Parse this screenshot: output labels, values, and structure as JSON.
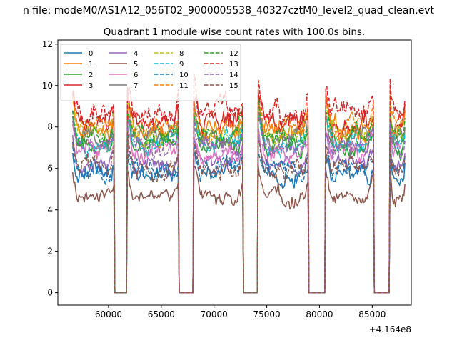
{
  "figure": {
    "suptitle": "n file: modeM0/AS1A12_056T02_9000005538_40327cztM0_level2_quad_clean.evt",
    "axis_offset": "+4.164e8"
  },
  "chart_data": {
    "type": "line",
    "title": "Quadrant 1 module wise count rates with 100.0s bins.",
    "xlabel": "",
    "ylabel": "",
    "x_offset": 416400000,
    "xlim": [
      55200,
      88700
    ],
    "ylim": [
      -0.6,
      12.2
    ],
    "x_ticks": [
      60000,
      65000,
      70000,
      75000,
      80000,
      85000
    ],
    "x_tick_labels": [
      "60000",
      "65000",
      "70000",
      "75000",
      "80000",
      "85000"
    ],
    "y_ticks": [
      0,
      2,
      4,
      6,
      8,
      10,
      12
    ],
    "y_tick_labels": [
      "0",
      "2",
      "4",
      "6",
      "8",
      "10",
      "12"
    ],
    "grid": false,
    "legend": {
      "placement": "top-left",
      "columns": 4
    },
    "bin_seconds": 100,
    "active_segments": [
      [
        56600,
        60500
      ],
      [
        61800,
        66600
      ],
      [
        68100,
        72700
      ],
      [
        74200,
        78900
      ],
      [
        80600,
        85100
      ],
      [
        86700,
        88100
      ]
    ],
    "gap_value": 0,
    "series": [
      {
        "name": "0",
        "color": "#1f77b4",
        "dash": "solid",
        "level": 5.7,
        "noise": 0.35
      },
      {
        "name": "1",
        "color": "#ff7f0e",
        "dash": "solid",
        "level": 7.9,
        "noise": 0.35
      },
      {
        "name": "2",
        "color": "#2ca02c",
        "dash": "solid",
        "level": 7.0,
        "noise": 0.35
      },
      {
        "name": "3",
        "color": "#d62728",
        "dash": "solid",
        "level": 8.2,
        "noise": 0.4
      },
      {
        "name": "4",
        "color": "#9467bd",
        "dash": "solid",
        "level": 6.2,
        "noise": 0.3
      },
      {
        "name": "5",
        "color": "#8c564b",
        "dash": "solid",
        "level": 4.6,
        "noise": 0.3
      },
      {
        "name": "6",
        "color": "#e377c2",
        "dash": "solid",
        "level": 6.8,
        "noise": 0.35
      },
      {
        "name": "7",
        "color": "#7f7f7f",
        "dash": "solid",
        "level": 7.4,
        "noise": 0.35
      },
      {
        "name": "8",
        "color": "#bcbd22",
        "dash": "dashed",
        "level": 7.7,
        "noise": 0.35
      },
      {
        "name": "9",
        "color": "#17becf",
        "dash": "dashed",
        "level": 7.2,
        "noise": 0.35
      },
      {
        "name": "10",
        "color": "#1f77b4",
        "dash": "dashed",
        "level": 5.9,
        "noise": 0.35
      },
      {
        "name": "11",
        "color": "#ff7f0e",
        "dash": "dashed",
        "level": 8.0,
        "noise": 0.35
      },
      {
        "name": "12",
        "color": "#2ca02c",
        "dash": "dashed",
        "level": 7.5,
        "noise": 0.35
      },
      {
        "name": "13",
        "color": "#d62728",
        "dash": "dashed",
        "level": 8.6,
        "noise": 0.45
      },
      {
        "name": "14",
        "color": "#9467bd",
        "dash": "dashed",
        "level": 7.1,
        "noise": 0.35
      },
      {
        "name": "15",
        "color": "#8c564b",
        "dash": "dashed",
        "level": 6.0,
        "noise": 0.35
      }
    ]
  }
}
